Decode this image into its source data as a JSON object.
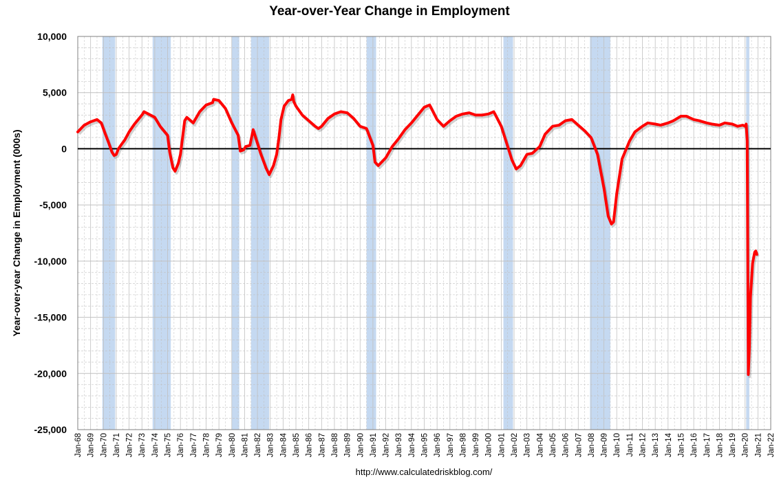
{
  "chart_data": {
    "type": "line",
    "title": "Year-over-Year Change in Employment",
    "xlabel": "",
    "ylabel": "Year-over-year Change in Employment (000s)",
    "source": "http://www.calculatedriskblog.com/",
    "ylim": [
      -25000,
      10000
    ],
    "xlim": [
      "Jan-68",
      "Jan-22"
    ],
    "y_ticks": [
      "10,000",
      "5,000",
      "0",
      "-5,000",
      "-10,000",
      "-15,000",
      "-20,000",
      "-25,000"
    ],
    "y_tick_values": [
      10000,
      5000,
      0,
      -5000,
      -10000,
      -15000,
      -20000,
      -25000
    ],
    "x_tick_labels": [
      "Jan-68",
      "Jan-69",
      "Jan-70",
      "Jan-71",
      "Jan-72",
      "Jan-73",
      "Jan-74",
      "Jan-75",
      "Jan-76",
      "Jan-77",
      "Jan-78",
      "Jan-79",
      "Jan-80",
      "Jan-81",
      "Jan-82",
      "Jan-83",
      "Jan-84",
      "Jan-85",
      "Jan-86",
      "Jan-87",
      "Jan-88",
      "Jan-89",
      "Jan-90",
      "Jan-91",
      "Jan-92",
      "Jan-93",
      "Jan-94",
      "Jan-95",
      "Jan-96",
      "Jan-97",
      "Jan-98",
      "Jan-99",
      "Jan-00",
      "Jan-01",
      "Jan-02",
      "Jan-03",
      "Jan-04",
      "Jan-05",
      "Jan-06",
      "Jan-07",
      "Jan-08",
      "Jan-09",
      "Jan-10",
      "Jan-11",
      "Jan-12",
      "Jan-13",
      "Jan-14",
      "Jan-15",
      "Jan-16",
      "Jan-17",
      "Jan-18",
      "Jan-19",
      "Jan-20",
      "Jan-21",
      "Jan-22"
    ],
    "grid": true,
    "recessions": [
      {
        "start": "Dec-69",
        "end": "Nov-70"
      },
      {
        "start": "Nov-73",
        "end": "Mar-75"
      },
      {
        "start": "Jan-80",
        "end": "Jul-80"
      },
      {
        "start": "Jul-81",
        "end": "Nov-82"
      },
      {
        "start": "Jul-90",
        "end": "Mar-91"
      },
      {
        "start": "Mar-01",
        "end": "Nov-01"
      },
      {
        "start": "Dec-07",
        "end": "Jun-09"
      },
      {
        "start": "Feb-20",
        "end": "Apr-20"
      }
    ],
    "series": [
      {
        "color": "#ff0000",
        "points": [
          [
            "Jan-68",
            1500
          ],
          [
            "Jul-68",
            2100
          ],
          [
            "Jan-69",
            2400
          ],
          [
            "Jul-69",
            2600
          ],
          [
            "Nov-69",
            2300
          ],
          [
            "Feb-70",
            1500
          ],
          [
            "Jun-70",
            500
          ],
          [
            "Sep-70",
            -300
          ],
          [
            "Nov-70",
            -600
          ],
          [
            "Jan-71",
            -500
          ],
          [
            "Mar-71",
            0
          ],
          [
            "Jun-71",
            400
          ],
          [
            "Sep-71",
            800
          ],
          [
            "Jan-72",
            1500
          ],
          [
            "Jun-72",
            2200
          ],
          [
            "Jan-73",
            3000
          ],
          [
            "Mar-73",
            3300
          ],
          [
            "Jul-73",
            3100
          ],
          [
            "Jan-74",
            2800
          ],
          [
            "Jun-74",
            2000
          ],
          [
            "Jan-75",
            1200
          ],
          [
            "Mar-75",
            -300
          ],
          [
            "Jun-75",
            -1700
          ],
          [
            "Aug-75",
            -2000
          ],
          [
            "Nov-75",
            -1300
          ],
          [
            "Jan-76",
            -500
          ],
          [
            "Mar-76",
            1000
          ],
          [
            "May-76",
            2500
          ],
          [
            "Jul-76",
            2800
          ],
          [
            "Jan-77",
            2300
          ],
          [
            "Jul-77",
            3300
          ],
          [
            "Jan-78",
            3900
          ],
          [
            "Jul-78",
            4100
          ],
          [
            "Aug-78",
            4400
          ],
          [
            "Jan-79",
            4300
          ],
          [
            "Jul-79",
            3600
          ],
          [
            "Jan-80",
            2300
          ],
          [
            "Jul-80",
            1200
          ],
          [
            "Sep-80",
            -200
          ],
          [
            "Dec-80",
            -100
          ],
          [
            "Feb-81",
            200
          ],
          [
            "Jun-81",
            300
          ],
          [
            "Sep-81",
            1700
          ],
          [
            "Dec-81",
            800
          ],
          [
            "Apr-82",
            -400
          ],
          [
            "Sep-82",
            -1700
          ],
          [
            "Dec-82",
            -2300
          ],
          [
            "Apr-83",
            -1500
          ],
          [
            "Jul-83",
            -500
          ],
          [
            "Sep-83",
            900
          ],
          [
            "Nov-83",
            2600
          ],
          [
            "Feb-84",
            3800
          ],
          [
            "Jun-84",
            4300
          ],
          [
            "Sep-84",
            4400
          ],
          [
            "Oct-84",
            4800
          ],
          [
            "Nov-84",
            4200
          ],
          [
            "Jan-85",
            3800
          ],
          [
            "Jul-85",
            3000
          ],
          [
            "Jan-86",
            2500
          ],
          [
            "Jul-86",
            2000
          ],
          [
            "Oct-86",
            1800
          ],
          [
            "Jan-87",
            2000
          ],
          [
            "Jul-87",
            2700
          ],
          [
            "Jan-88",
            3100
          ],
          [
            "Jul-88",
            3300
          ],
          [
            "Jan-89",
            3200
          ],
          [
            "Jul-89",
            2700
          ],
          [
            "Jan-90",
            2000
          ],
          [
            "Jul-90",
            1800
          ],
          [
            "Jan-91",
            300
          ],
          [
            "Mar-91",
            -1200
          ],
          [
            "Jun-91",
            -1500
          ],
          [
            "Jan-92",
            -800
          ],
          [
            "Jul-92",
            200
          ],
          [
            "Jan-93",
            900
          ],
          [
            "Jul-93",
            1700
          ],
          [
            "Jan-94",
            2300
          ],
          [
            "Jul-94",
            3000
          ],
          [
            "Jan-95",
            3700
          ],
          [
            "Jun-95",
            3900
          ],
          [
            "Jan-96",
            2600
          ],
          [
            "Jul-96",
            2000
          ],
          [
            "Jan-97",
            2500
          ],
          [
            "Jul-97",
            2900
          ],
          [
            "Jan-98",
            3100
          ],
          [
            "Jul-98",
            3200
          ],
          [
            "Jan-99",
            3000
          ],
          [
            "Jul-99",
            3000
          ],
          [
            "Jan-00",
            3100
          ],
          [
            "Jun-00",
            3300
          ],
          [
            "Jan-01",
            2000
          ],
          [
            "Jun-01",
            500
          ],
          [
            "Nov-01",
            -1000
          ],
          [
            "Mar-02",
            -1800
          ],
          [
            "Jul-02",
            -1500
          ],
          [
            "Jan-03",
            -500
          ],
          [
            "Jun-03",
            -400
          ],
          [
            "Jan-04",
            200
          ],
          [
            "Jun-04",
            1300
          ],
          [
            "Jan-05",
            2000
          ],
          [
            "Jul-05",
            2100
          ],
          [
            "Jan-06",
            2500
          ],
          [
            "Jul-06",
            2600
          ],
          [
            "Jan-07",
            2100
          ],
          [
            "Jul-07",
            1600
          ],
          [
            "Jan-08",
            1000
          ],
          [
            "Jul-08",
            -500
          ],
          [
            "Jan-09",
            -3500
          ],
          [
            "May-09",
            -6000
          ],
          [
            "Aug-09",
            -6700
          ],
          [
            "Oct-09",
            -6500
          ],
          [
            "Jan-10",
            -4000
          ],
          [
            "Jun-10",
            -900
          ],
          [
            "Jan-11",
            700
          ],
          [
            "Jun-11",
            1500
          ],
          [
            "Jan-12",
            2000
          ],
          [
            "Jun-12",
            2300
          ],
          [
            "Jan-13",
            2200
          ],
          [
            "Jun-13",
            2100
          ],
          [
            "Jan-14",
            2300
          ],
          [
            "Jun-14",
            2500
          ],
          [
            "Jan-15",
            2900
          ],
          [
            "Jun-15",
            2900
          ],
          [
            "Jan-16",
            2600
          ],
          [
            "Jun-16",
            2500
          ],
          [
            "Jan-17",
            2300
          ],
          [
            "Jun-17",
            2200
          ],
          [
            "Jan-18",
            2100
          ],
          [
            "Jun-18",
            2300
          ],
          [
            "Jan-19",
            2200
          ],
          [
            "Jun-19",
            2000
          ],
          [
            "Nov-19",
            2100
          ],
          [
            "Jan-20",
            2000
          ],
          [
            "Feb-20",
            2200
          ],
          [
            "Mar-20",
            700
          ],
          [
            "Apr-20",
            -20100
          ],
          [
            "May-20",
            -17800
          ],
          [
            "Jun-20",
            -13200
          ],
          [
            "Jul-20",
            -11800
          ],
          [
            "Aug-20",
            -10200
          ],
          [
            "Sep-20",
            -9700
          ],
          [
            "Oct-20",
            -9200
          ],
          [
            "Nov-20",
            -9100
          ],
          [
            "Dec-20",
            -9400
          ]
        ]
      }
    ]
  },
  "colors": {
    "line": "#ff0000",
    "recession": "#c5d9f1",
    "grid": "#c0c0c0",
    "zero_line": "#000000"
  }
}
